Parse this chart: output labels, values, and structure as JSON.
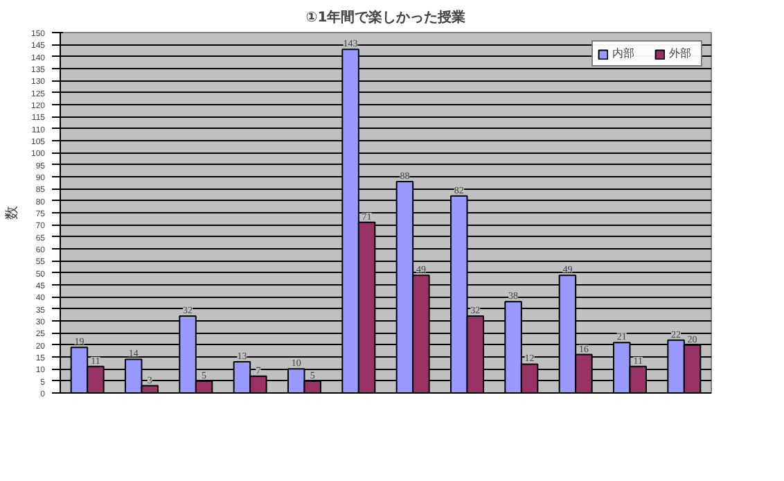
{
  "chart_data": {
    "type": "bar",
    "title": "①1年間で楽しかった授業",
    "ylabel": "数",
    "categories": [
      null,
      null,
      null,
      null,
      null,
      null,
      null,
      null,
      null,
      null,
      null,
      null
    ],
    "series": [
      {
        "name": "内部",
        "color": "#9999ff",
        "values": [
          19,
          14,
          32,
          13,
          10,
          143,
          88,
          82,
          38,
          49,
          21,
          22
        ]
      },
      {
        "name": "外部",
        "color": "#993366",
        "values": [
          11,
          3,
          5,
          7,
          5,
          71,
          49,
          32,
          12,
          16,
          11,
          20
        ]
      }
    ],
    "ylim": [
      0,
      150
    ],
    "yticks": [
      0,
      5,
      10,
      15,
      20,
      25,
      30,
      35,
      40,
      45,
      50,
      55,
      60,
      65,
      70,
      75,
      80,
      85,
      90,
      95,
      100,
      105,
      110,
      115,
      120,
      125,
      130,
      135,
      140,
      145,
      150
    ],
    "grid": "y",
    "legend": "top right",
    "data_labels": true
  }
}
